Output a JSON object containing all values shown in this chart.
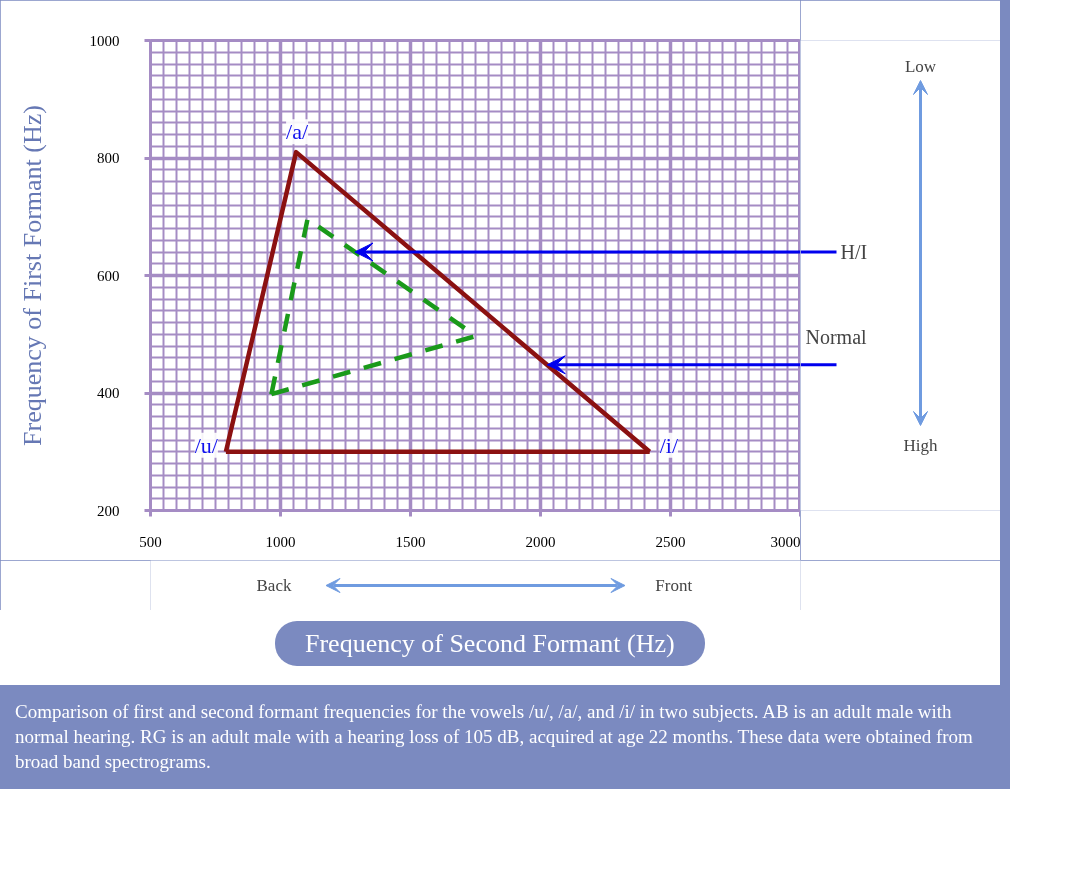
{
  "chart_data": {
    "type": "line",
    "xlabel": "Frequency of Second Formant (Hz)",
    "ylabel": "Frequency of First Formant (Hz)",
    "xlim": [
      500,
      3000
    ],
    "ylim": [
      200,
      1000
    ],
    "xticks": [
      500,
      1000,
      1500,
      2000,
      2500,
      3000
    ],
    "yticks": [
      200,
      400,
      600,
      800,
      1000
    ],
    "grid": true,
    "series": [
      {
        "color": "#8b1111",
        "line_style": "solid",
        "x": [
          790,
          1060,
          2420
        ],
        "values": [
          300,
          810,
          300
        ]
      },
      {
        "color": "#8b1111",
        "line_style": "solid",
        "x": [
          790,
          2420
        ],
        "values": [
          300,
          300
        ]
      },
      {
        "color": "#1a9a1a",
        "line_style": "dashed",
        "x": [
          965,
          1104,
          1752
        ],
        "values": [
          398,
          696,
          497
        ]
      },
      {
        "color": "#1a9a1a",
        "line_style": "dashed",
        "x": [
          965,
          1752
        ],
        "values": [
          398,
          497
        ]
      }
    ],
    "annotations": [
      {
        "text": "/a/",
        "x": 1060,
        "y": 810
      },
      {
        "text": "/u/",
        "x": 790,
        "y": 300
      },
      {
        "text": "/i/",
        "x": 2420,
        "y": 300
      },
      "H/I",
      {
        "text": "Normal",
        "x": 2026,
        "y": 448
      },
      "Low",
      "High",
      "Back",
      "Front",
      "Comparison of first and second formant frequencies for the vowels /u/, /a/, and /i/ in two subjects. AB is an adult male with normal hearing. RG is an adult male with a hearing loss of 105 dB, acquired at age 22 months. These data were obtained from broad band spectrograms."
    ]
  }
}
